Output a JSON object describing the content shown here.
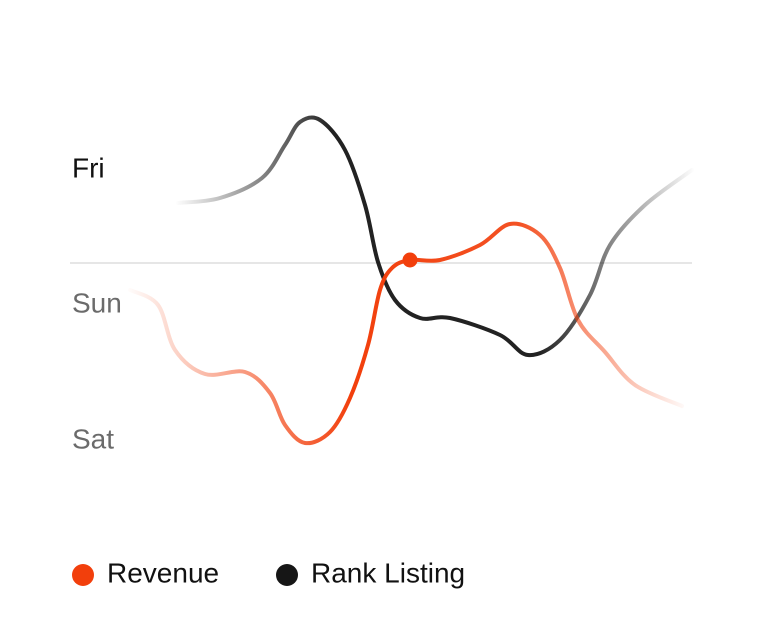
{
  "axis_labels": [
    "Fri",
    "Sun",
    "Sat"
  ],
  "legend": [
    {
      "name": "Revenue",
      "color": "#f23f0c"
    },
    {
      "name": "Rank Listing",
      "color": "#161616"
    }
  ]
}
